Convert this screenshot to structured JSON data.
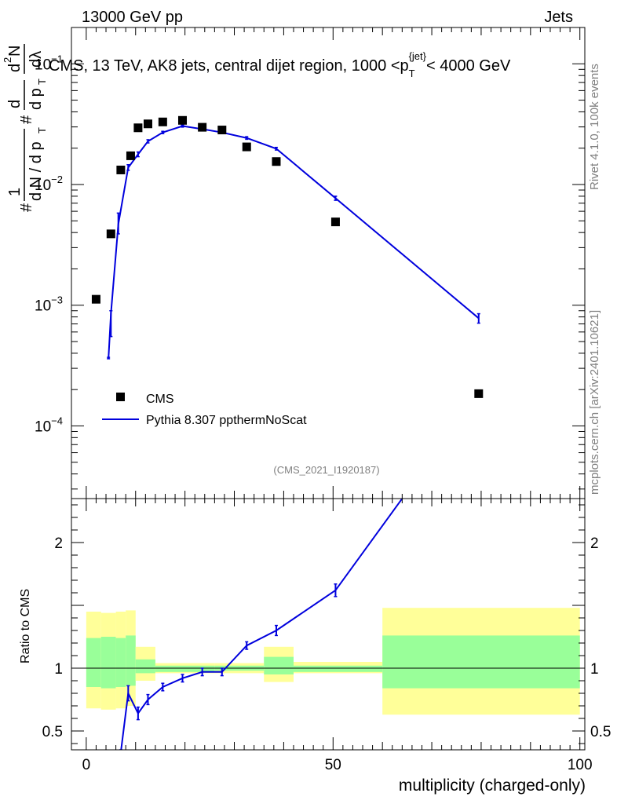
{
  "header": {
    "energy_label": "13000 GeV pp",
    "category_label": "Jets"
  },
  "plot_title": {
    "main": "CMS, 13 TeV, AK8 jets, central dijet region, 1000 <p",
    "sub": "T",
    "sup": "{jet}",
    "tail": "< 4000 GeV"
  },
  "side_labels": {
    "rivet": "Rivet 4.1.0,  100k events",
    "source": "mcplots.cern.ch [arXiv:2401.10621]"
  },
  "analysis_id": "(CMS_2021_I1920187)",
  "y_axis_label": {
    "hash_left": "#",
    "frac_num": "1",
    "frac_den": "d N / d p",
    "frac_den_sub": "T",
    "hash_mid": "#",
    "d_num": "d",
    "d_den": "d p",
    "d_den_sub": "T",
    "d2n_num": "d",
    "d2n_sup": "2",
    "d2n_N": "N",
    "d2n_den": "dλ"
  },
  "ratio_axis_label": "Ratio to CMS",
  "colors": {
    "data": "#000000",
    "mc": "#0000dd",
    "band_inner": "#99ff99",
    "band_outer": "#ffff99"
  },
  "chart_data": {
    "type": "scatter",
    "xlabel": "multiplicity (charged-only)",
    "xlim": [
      -3,
      101
    ],
    "xticks": [
      0,
      50,
      100
    ],
    "main_panel": {
      "yscale": "log",
      "ylim": [
        2.5e-05,
        0.2
      ],
      "ytick_labels": [
        {
          "value": 0.1,
          "mantissa": "10",
          "exponent": "−1"
        },
        {
          "value": 0.01,
          "mantissa": "10",
          "exponent": "−2"
        },
        {
          "value": 0.001,
          "mantissa": "10",
          "exponent": "−3"
        },
        {
          "value": 0.0001,
          "mantissa": "10",
          "exponent": "−4"
        }
      ],
      "legend": {
        "position": "lower-left",
        "data_label": "CMS",
        "mc_label": "Pythia 8.307 ppthermNoScat"
      },
      "series": [
        {
          "name": "CMS",
          "style": "markers",
          "x": [
            2,
            5,
            7,
            9,
            10.5,
            12.5,
            15.5,
            19.5,
            23.5,
            27.5,
            32.5,
            38.5,
            50.5,
            79.5
          ],
          "y": [
            0.00112,
            0.0039,
            0.0132,
            0.0173,
            0.0295,
            0.0318,
            0.033,
            0.034,
            0.0298,
            0.0283,
            0.0205,
            0.0155,
            0.0049,
            0.000185
          ]
        },
        {
          "name": "Pythia 8.307 ppthermNoScat",
          "style": "line",
          "x": [
            4.5,
            5,
            6.5,
            8.5,
            10.5,
            12.5,
            15.5,
            19.5,
            23.5,
            27.5,
            32.5,
            38.5,
            50.5,
            79.5
          ],
          "y": [
            0.00036,
            0.00085,
            0.0047,
            0.0138,
            0.0178,
            0.0228,
            0.027,
            0.0305,
            0.0288,
            0.027,
            0.0243,
            0.0198,
            0.0077,
            0.00078
          ],
          "yerr_low": [
            0.00036,
            0.00055,
            0.0039,
            0.0131,
            0.017,
            0.0221,
            0.0264,
            0.0299,
            0.0282,
            0.0264,
            0.0237,
            0.0193,
            0.0074,
            0.00071
          ],
          "yerr_high": [
            0.00037,
            0.0009,
            0.0058,
            0.0146,
            0.0186,
            0.0235,
            0.0276,
            0.0311,
            0.0294,
            0.0276,
            0.0249,
            0.0203,
            0.008,
            0.00085
          ]
        }
      ]
    },
    "ratio_panel": {
      "ylabel": "Ratio to CMS",
      "ylim": [
        0.35,
        2.35
      ],
      "yticks": [
        0.5,
        1,
        2
      ],
      "reference_line": 1,
      "bands": [
        {
          "x0": 0,
          "x1": 3,
          "inner": [
            0.85,
            1.24
          ],
          "outer": [
            0.68,
            1.45
          ]
        },
        {
          "x0": 3,
          "x1": 6,
          "inner": [
            0.84,
            1.25
          ],
          "outer": [
            0.67,
            1.44
          ]
        },
        {
          "x0": 6,
          "x1": 8,
          "inner": [
            0.85,
            1.24
          ],
          "outer": [
            0.68,
            1.45
          ]
        },
        {
          "x0": 8,
          "x1": 10,
          "inner": [
            0.86,
            1.26
          ],
          "outer": [
            0.7,
            1.46
          ]
        },
        {
          "x0": 10,
          "x1": 14,
          "inner": [
            0.96,
            1.07
          ],
          "outer": [
            0.9,
            1.17
          ]
        },
        {
          "x0": 14,
          "x1": 26,
          "inner": [
            0.97,
            1.02
          ],
          "outer": [
            0.96,
            1.04
          ]
        },
        {
          "x0": 26,
          "x1": 36,
          "inner": [
            0.98,
            1.02
          ],
          "outer": [
            0.96,
            1.04
          ]
        },
        {
          "x0": 36,
          "x1": 42,
          "inner": [
            0.95,
            1.09
          ],
          "outer": [
            0.89,
            1.17
          ]
        },
        {
          "x0": 42,
          "x1": 60,
          "inner": [
            0.97,
            1.02
          ],
          "outer": [
            0.96,
            1.05
          ]
        },
        {
          "x0": 60,
          "x1": 100,
          "inner": [
            0.84,
            1.26
          ],
          "outer": [
            0.63,
            1.48
          ]
        }
      ],
      "mc_ratio": {
        "x": [
          7,
          8.5,
          10.5,
          12.5,
          15.5,
          19.5,
          23.5,
          27.5,
          32.5,
          38.5,
          50.5,
          64
        ],
        "y": [
          0.33,
          0.8,
          0.64,
          0.75,
          0.85,
          0.92,
          0.97,
          0.97,
          1.18,
          1.3,
          1.62,
          2.35
        ],
        "yerr": [
          0.02,
          0.06,
          0.05,
          0.04,
          0.03,
          0.03,
          0.03,
          0.03,
          0.03,
          0.04,
          0.05,
          0.0
        ]
      }
    }
  }
}
